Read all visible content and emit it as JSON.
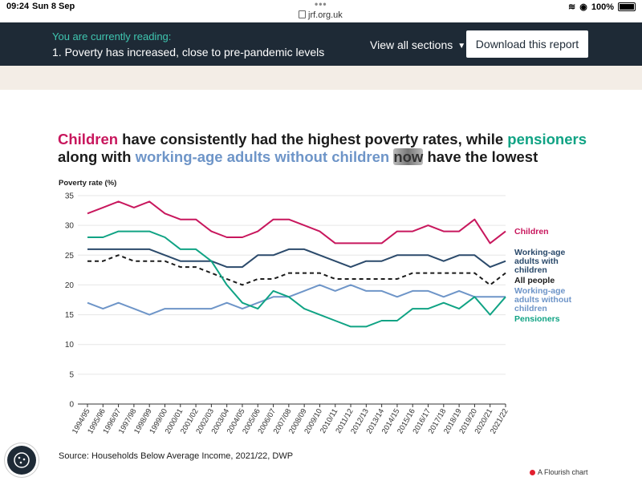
{
  "status": {
    "time": "09:24",
    "date": "Sun 8 Sep",
    "url": "jrf.org.uk",
    "battery": "100%"
  },
  "reading": {
    "label": "You are currently reading:",
    "current": "1. Poverty has increased, close to pre-pandemic levels",
    "sections_label": "View all sections",
    "download_label": "Download this report"
  },
  "headline": {
    "p1": "Children",
    "p2": " have consistently had the highest poverty rates, while ",
    "p3": "pensioners",
    "p4": "along with ",
    "p5": "working-age adults without children",
    "p6": " ",
    "p7": "now",
    "p8": " have the lowest"
  },
  "footer": {
    "source": "Source: Households Below Average Income, 2021/22, DWP",
    "credit": "A Flourish chart"
  },
  "chart_data": {
    "type": "line",
    "ylabel": "Poverty rate (%)",
    "ylim": [
      0,
      35
    ],
    "yticks": [
      0,
      5,
      10,
      15,
      20,
      25,
      30,
      35
    ],
    "grid": true,
    "categories": [
      "1994/95",
      "1995/96",
      "1996/97",
      "1997/98",
      "1998/99",
      "1999/00",
      "2000/01",
      "2001/02",
      "2002/03",
      "2003/04",
      "2004/05",
      "2005/06",
      "2006/07",
      "2007/08",
      "2008/09",
      "2009/10",
      "2010/11",
      "2011/12",
      "2012/13",
      "2013/14",
      "2014/15",
      "2015/16",
      "2016/17",
      "2017/18",
      "2018/19",
      "2019/20",
      "2020/21",
      "2021/22"
    ],
    "series": [
      {
        "name": "Children",
        "color": "#c8175d",
        "dashed": false,
        "values": [
          32,
          33,
          34,
          33,
          34,
          32,
          31,
          31,
          29,
          28,
          28,
          29,
          31,
          31,
          30,
          29,
          27,
          27,
          27,
          27,
          29,
          29,
          30,
          29,
          29,
          31,
          27,
          29
        ]
      },
      {
        "name": "Working-age adults with children",
        "color": "#2b4a6b",
        "dashed": false,
        "values": [
          26,
          26,
          26,
          26,
          26,
          25,
          24,
          24,
          24,
          23,
          23,
          25,
          25,
          26,
          26,
          25,
          24,
          23,
          24,
          24,
          25,
          25,
          25,
          24,
          25,
          25,
          23,
          24
        ]
      },
      {
        "name": "All people",
        "color": "#1b1b1b",
        "dashed": true,
        "values": [
          24,
          24,
          25,
          24,
          24,
          24,
          23,
          23,
          22,
          21,
          20,
          21,
          21,
          22,
          22,
          22,
          21,
          21,
          21,
          21,
          21,
          22,
          22,
          22,
          22,
          22,
          20,
          22
        ]
      },
      {
        "name": "Working-age adults without children",
        "color": "#6e95c8",
        "dashed": false,
        "values": [
          17,
          16,
          17,
          16,
          15,
          16,
          16,
          16,
          16,
          17,
          16,
          17,
          18,
          18,
          19,
          20,
          19,
          20,
          19,
          19,
          18,
          19,
          19,
          18,
          19,
          18,
          18,
          18
        ]
      },
      {
        "name": "Pensioners",
        "color": "#10a384",
        "dashed": false,
        "values": [
          28,
          28,
          29,
          29,
          29,
          28,
          26,
          26,
          24,
          20,
          17,
          16,
          19,
          18,
          16,
          15,
          14,
          13,
          13,
          14,
          14,
          16,
          16,
          17,
          16,
          18,
          15,
          18
        ]
      }
    ],
    "end_labels": [
      {
        "lines": [
          "Children"
        ],
        "color": "#c8175d"
      },
      {
        "lines": [
          "Working-age",
          "adults with",
          "children"
        ],
        "color": "#2b4a6b"
      },
      {
        "lines": [
          "All people"
        ],
        "color": "#1b1b1b"
      },
      {
        "lines": [
          "Working-age",
          "adults without",
          "children"
        ],
        "color": "#6e95c8"
      },
      {
        "lines": [
          "Pensioners"
        ],
        "color": "#10a384"
      }
    ]
  }
}
